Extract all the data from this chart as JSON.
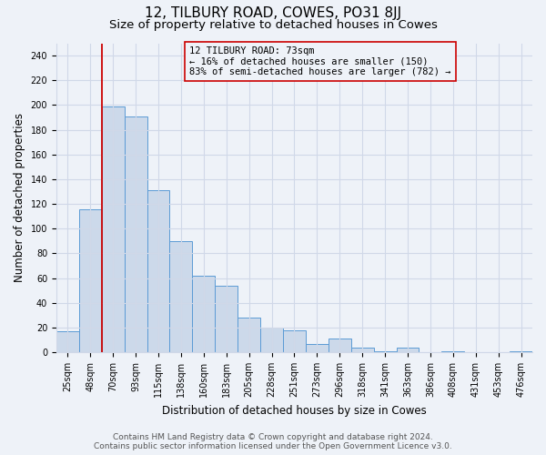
{
  "title": "12, TILBURY ROAD, COWES, PO31 8JJ",
  "subtitle": "Size of property relative to detached houses in Cowes",
  "xlabel": "Distribution of detached houses by size in Cowes",
  "ylabel": "Number of detached properties",
  "bar_labels": [
    "25sqm",
    "48sqm",
    "70sqm",
    "93sqm",
    "115sqm",
    "138sqm",
    "160sqm",
    "183sqm",
    "205sqm",
    "228sqm",
    "251sqm",
    "273sqm",
    "296sqm",
    "318sqm",
    "341sqm",
    "363sqm",
    "386sqm",
    "408sqm",
    "431sqm",
    "453sqm",
    "476sqm"
  ],
  "bar_values": [
    17,
    116,
    199,
    191,
    131,
    90,
    62,
    54,
    28,
    20,
    18,
    7,
    11,
    4,
    1,
    4,
    0,
    1,
    0,
    0,
    1
  ],
  "bar_color": "#ccd9ea",
  "bar_edge_color": "#5b9bd5",
  "vline_index": 2,
  "vline_color": "#cc0000",
  "annotation_title": "12 TILBURY ROAD: 73sqm",
  "annotation_line1": "← 16% of detached houses are smaller (150)",
  "annotation_line2": "83% of semi-detached houses are larger (782) →",
  "ylim": [
    0,
    250
  ],
  "yticks": [
    0,
    20,
    40,
    60,
    80,
    100,
    120,
    140,
    160,
    180,
    200,
    220,
    240
  ],
  "footer1": "Contains HM Land Registry data © Crown copyright and database right 2024.",
  "footer2": "Contains public sector information licensed under the Open Government Licence v3.0.",
  "bg_color": "#eef2f8",
  "grid_color": "#d0d8e8",
  "title_fontsize": 11,
  "subtitle_fontsize": 9.5,
  "axis_label_fontsize": 8.5,
  "tick_fontsize": 7,
  "footer_fontsize": 6.5,
  "ann_fontsize": 7.5
}
